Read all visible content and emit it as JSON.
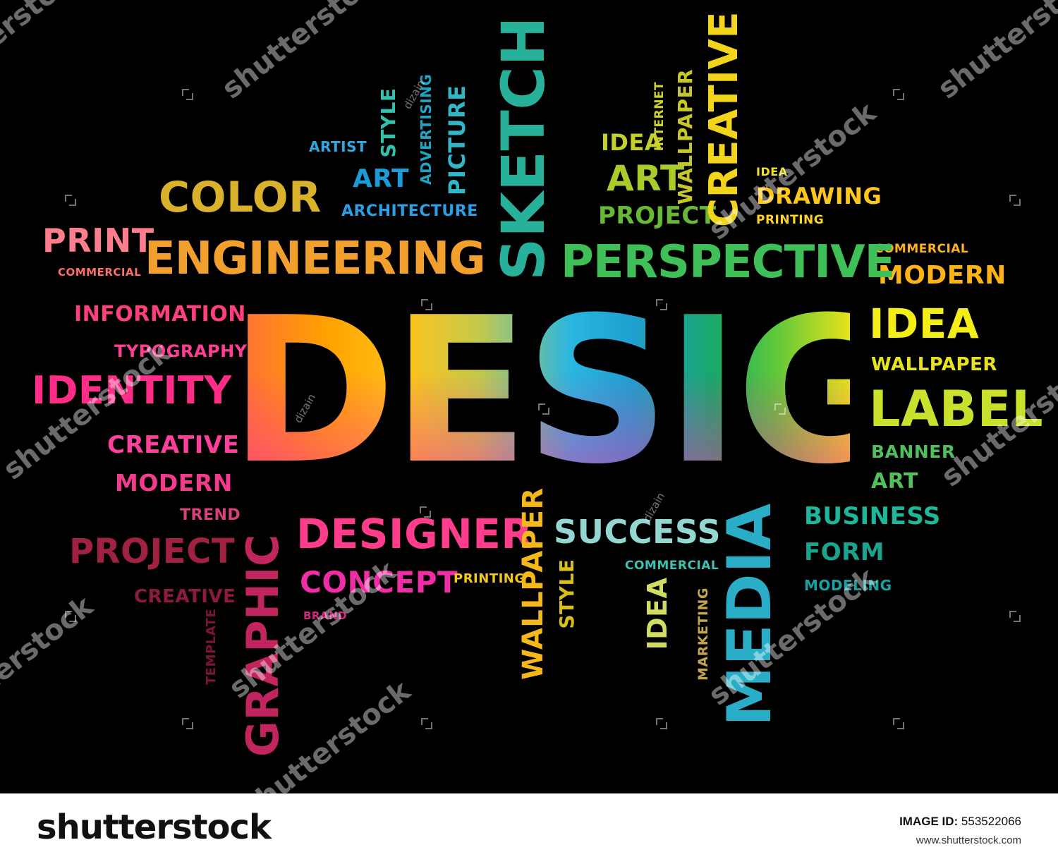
{
  "words": {
    "design": "DESIGN",
    "color": "COLOR",
    "engineering": "ENGINEERING",
    "sketch": "SKETCH",
    "perspective": "PERSPECTIVE",
    "creative_top": "CREATIVE",
    "print": "PRINT",
    "commercial_left": "COMMERCIAL",
    "information": "INFORMATION",
    "typography": "TYPOGRAPHY",
    "identity": "IDENTITY",
    "creative_left": "CREATIVE",
    "modern_left": "MODERN",
    "trend": "TREND",
    "project_left": "PROJECT",
    "creative_bottom_left": "CREATIVE",
    "template": "TEMPLATE",
    "graphic": "GRAPHIC",
    "designer": "DESIGNER",
    "concept": "CONCEPT",
    "brand": "BRAND",
    "printing_bottom": "PRINTING",
    "wallpaper_bottom": "WALLPAPER",
    "success": "SUCCESS",
    "style_bottom": "STYLE",
    "commercial_bottom": "COMMERCIAL",
    "idea_bottom": "IDEA",
    "marketing": "MARKETING",
    "media": "MEDIA",
    "business": "BUSINESS",
    "form": "FORM",
    "modeling": "MODELING",
    "art_right": "ART",
    "banner": "BANNER",
    "label": "LABEL",
    "wallpaper_right": "WALLPAPER",
    "idea_right": "IDEA",
    "modern_right": "MODERN",
    "commercial_right": "COMMERCIAL",
    "artist": "ARTIST",
    "art_top": "ART",
    "style_top": "STYLE",
    "advertising": "ADVERTISING",
    "picture": "PICTURE",
    "architecture": "ARCHITECTURE",
    "idea_top": "IDEA",
    "art_top2": "ART",
    "project_top": "PROJECT",
    "internet": "INTERNET",
    "wallpaper_top": "WALLPAPER",
    "idea_small": "IDEA",
    "drawing": "DRAWING",
    "printing_top": "PRINTING"
  },
  "watermark": {
    "brand_text": "shutterstock",
    "contributor": "dizain"
  },
  "footer": {
    "brand": "shutterstock",
    "image_id_label": "IMAGE ID:",
    "image_id": "553522066",
    "site": "www.shutterstock.com"
  }
}
